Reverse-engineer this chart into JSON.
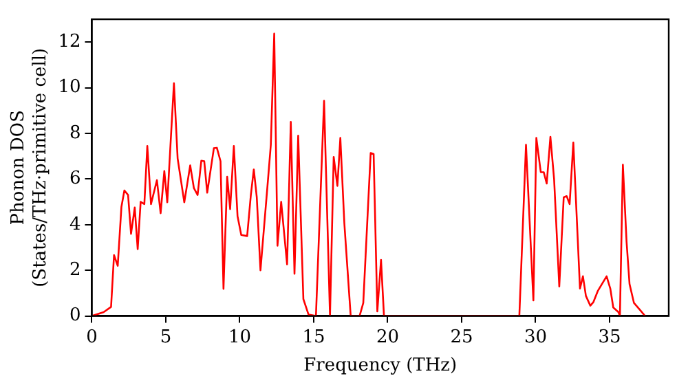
{
  "chart_data": {
    "type": "line",
    "xlabel": "Frequency (THz)",
    "ylabel": "Phonon DOS\n(States/THz·primitive cell)",
    "xlim": [
      0,
      39
    ],
    "ylim": [
      0,
      13
    ],
    "xticks": [
      0,
      5,
      10,
      15,
      20,
      25,
      30,
      35
    ],
    "yticks": [
      0,
      2,
      4,
      6,
      8,
      10,
      12
    ],
    "grid": false,
    "legend": false,
    "marker": "none",
    "line_style": "solid",
    "series": [
      {
        "color": "#ff0000",
        "x": [
          0,
          0.8,
          1.3,
          1.5,
          1.75,
          2.0,
          2.2,
          2.45,
          2.65,
          2.9,
          3.1,
          3.3,
          3.55,
          3.75,
          4.0,
          4.4,
          4.65,
          4.9,
          5.1,
          5.55,
          5.8,
          6.25,
          6.65,
          6.9,
          7.15,
          7.4,
          7.6,
          7.8,
          8.25,
          8.45,
          8.7,
          8.9,
          9.15,
          9.35,
          9.6,
          9.85,
          10.1,
          10.5,
          10.75,
          10.95,
          11.15,
          11.4,
          11.9,
          12.1,
          12.33,
          12.55,
          12.8,
          13.2,
          13.45,
          13.7,
          13.95,
          14.3,
          14.65,
          15.15,
          15.7,
          16.1,
          16.35,
          16.6,
          16.8,
          17.07,
          17.5,
          18.1,
          18.35,
          18.85,
          19.05,
          19.3,
          19.55,
          19.75,
          28.9,
          29.35,
          29.85,
          30.05,
          30.35,
          30.55,
          30.75,
          31.0,
          31.25,
          31.6,
          31.9,
          32.1,
          32.3,
          32.55,
          33.0,
          33.2,
          33.4,
          33.7,
          33.9,
          34.2,
          34.8,
          35.05,
          35.25,
          35.6,
          35.7,
          35.9,
          36.15,
          36.35,
          36.65,
          37.05,
          37.4
        ],
        "values": [
          0,
          0.17,
          0.4,
          2.67,
          2.2,
          4.78,
          5.5,
          5.3,
          3.6,
          4.75,
          2.93,
          5.0,
          4.9,
          7.45,
          4.9,
          5.95,
          4.5,
          6.35,
          4.98,
          10.2,
          6.9,
          4.98,
          6.6,
          5.6,
          5.3,
          6.8,
          6.78,
          5.4,
          7.35,
          7.37,
          6.78,
          1.19,
          6.1,
          4.68,
          7.45,
          4.37,
          3.55,
          3.5,
          5.3,
          6.42,
          5.2,
          2.0,
          5.9,
          7.5,
          12.37,
          3.08,
          5.0,
          2.26,
          8.5,
          1.85,
          7.9,
          0.74,
          0.06,
          0,
          9.43,
          0,
          6.97,
          5.7,
          7.8,
          4.06,
          0,
          0,
          0.57,
          7.14,
          7.1,
          0.2,
          2.46,
          0,
          0,
          7.5,
          0.68,
          7.8,
          6.3,
          6.3,
          5.8,
          7.85,
          6.0,
          1.29,
          5.2,
          5.25,
          4.9,
          7.6,
          1.2,
          1.74,
          0.88,
          0.45,
          0.6,
          1.09,
          1.74,
          1.2,
          0.37,
          0.17,
          0,
          6.63,
          3.24,
          1.4,
          0.57,
          0.27,
          0
        ]
      }
    ]
  }
}
